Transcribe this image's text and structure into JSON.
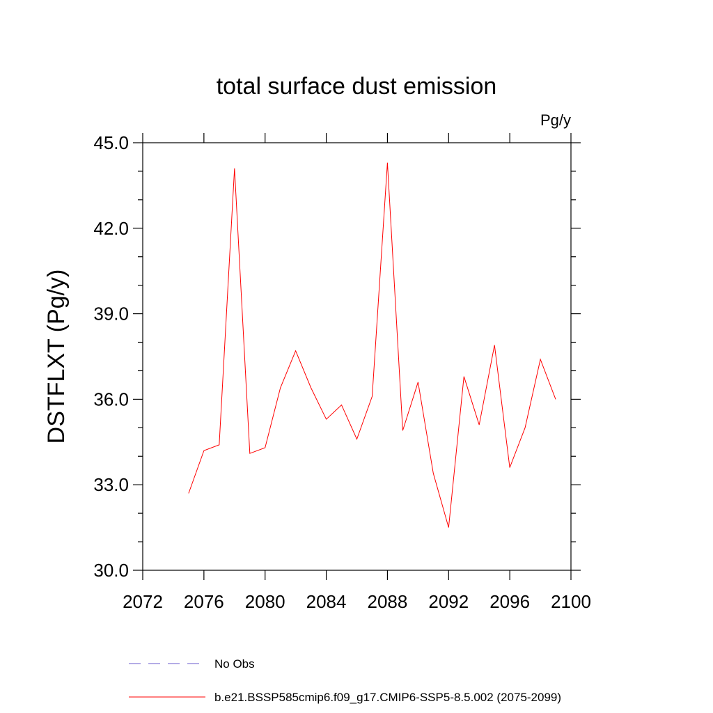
{
  "chart_data": {
    "type": "line",
    "title": "total surface dust emission",
    "units": "Pg/y",
    "ylabel": "DSTFLXT  (Pg/y)",
    "xlabel": "",
    "xlim": [
      2072,
      2100
    ],
    "ylim": [
      30.0,
      45.0
    ],
    "xticks": [
      "2072",
      "2076",
      "2080",
      "2084",
      "2088",
      "2092",
      "2096",
      "2100"
    ],
    "yticks": [
      "30.0",
      "33.0",
      "36.0",
      "39.0",
      "42.0",
      "45.0"
    ],
    "grid": false,
    "legend_position": "bottom",
    "series": [
      {
        "name": "No Obs",
        "color": "#6a5acd",
        "dash": "dashed",
        "x": [],
        "values": []
      },
      {
        "name": "b.e21.BSSP585cmip6.f09_g17.CMIP6-SSP5-8.5.002 (2075-2099)",
        "color": "#ff0000",
        "dash": "solid",
        "x": [
          2075,
          2076,
          2077,
          2078,
          2079,
          2080,
          2081,
          2082,
          2083,
          2084,
          2085,
          2086,
          2087,
          2088,
          2089,
          2090,
          2091,
          2092,
          2093,
          2094,
          2095,
          2096,
          2097,
          2098,
          2099
        ],
        "values": [
          32.7,
          34.2,
          34.4,
          44.1,
          34.1,
          34.3,
          36.4,
          37.7,
          36.4,
          35.3,
          35.8,
          34.6,
          36.1,
          44.3,
          34.9,
          36.6,
          33.4,
          31.5,
          36.8,
          35.1,
          37.9,
          33.6,
          35.0,
          37.4,
          36.0
        ]
      }
    ]
  }
}
